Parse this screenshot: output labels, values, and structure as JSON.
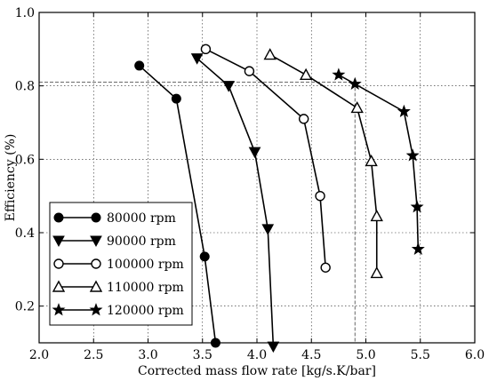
{
  "chart_data": {
    "type": "line",
    "title": "",
    "xlabel": "Corrected mass flow rate [kg/s.K/bar]",
    "ylabel": "Efficiency (%)",
    "xlim": [
      2.0,
      6.0
    ],
    "ylim": [
      0.1,
      1.0
    ],
    "xticks": [
      "2.0",
      "2.5",
      "3.0",
      "3.5",
      "4.0",
      "4.5",
      "5.0",
      "5.5",
      "6.0"
    ],
    "yticks": [
      "0.2",
      "0.4",
      "0.6",
      "0.8",
      "1.0"
    ],
    "grid": true,
    "grid_style": "dotted",
    "legend_position": "lower-left",
    "series": [
      {
        "name": "80000 rpm",
        "marker": "filled-circle",
        "x": [
          2.92,
          3.26,
          3.52,
          3.62
        ],
        "y": [
          0.855,
          0.765,
          0.335,
          0.1
        ]
      },
      {
        "name": "90000 rpm",
        "marker": "filled-triangle-down",
        "x": [
          3.45,
          3.74,
          3.98,
          4.1,
          4.15
        ],
        "y": [
          0.875,
          0.8,
          0.62,
          0.41,
          0.09
        ]
      },
      {
        "name": "100000 rpm",
        "marker": "open-circle",
        "x": [
          3.53,
          3.93,
          4.43,
          4.58,
          4.63
        ],
        "y": [
          0.9,
          0.84,
          0.71,
          0.5,
          0.305
        ]
      },
      {
        "name": "110000 rpm",
        "marker": "open-triangle-up",
        "x": [
          4.12,
          4.45,
          4.92,
          5.05,
          5.1,
          5.1
        ],
        "y": [
          0.885,
          0.83,
          0.74,
          0.595,
          0.445,
          0.29
        ]
      },
      {
        "name": "120000 rpm",
        "marker": "filled-star",
        "x": [
          4.75,
          4.9,
          5.35,
          5.43,
          5.47,
          5.48
        ],
        "y": [
          0.83,
          0.805,
          0.73,
          0.61,
          0.47,
          0.355
        ]
      }
    ],
    "reference_lines": {
      "horizontal_y": 0.81,
      "vertical_x": 4.9,
      "style": "dashed"
    }
  }
}
